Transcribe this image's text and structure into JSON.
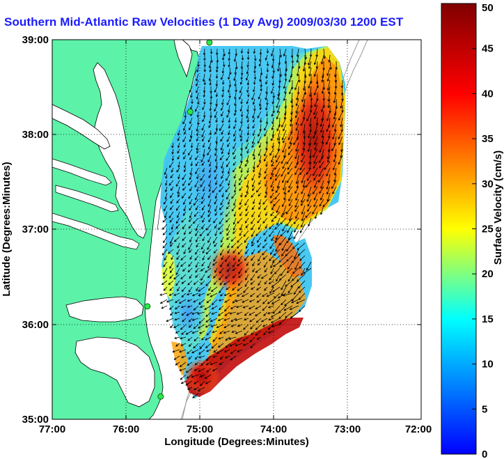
{
  "title": "Southern Mid-Atlantic Raw Velocities (1 Day Avg) 2009/03/30 1200 EST",
  "x_axis": {
    "label": "Longitude (Degrees:Minutes)",
    "ticks": [
      "77:00",
      "76:00",
      "75:00",
      "74:00",
      "73:00",
      "72:00"
    ]
  },
  "y_axis": {
    "label": "Latitude (Degrees:Minutes)",
    "ticks": [
      "39:00",
      "38:00",
      "37:00",
      "36:00",
      "35:00"
    ]
  },
  "colorbar": {
    "label": "Surface Velocity (cm/s)",
    "ticks": [
      "50",
      "45",
      "40",
      "35",
      "30",
      "25",
      "20",
      "15",
      "10",
      "5",
      "0"
    ],
    "min": 0,
    "max": 50,
    "colormap": [
      "#0000ff",
      "#00ffff",
      "#ffff00",
      "#ff0000",
      "#800000"
    ]
  },
  "map": {
    "lon_range": [
      -77,
      -72
    ],
    "lat_range": [
      35,
      39
    ],
    "land_color": "#5cf2a8",
    "grid": "dotted",
    "stations": [
      {
        "lon": -74.87,
        "lat": 38.97
      },
      {
        "lon": -75.13,
        "lat": 38.24
      },
      {
        "lon": -75.71,
        "lat": 36.19
      },
      {
        "lon": -75.53,
        "lat": 35.24
      }
    ]
  }
}
